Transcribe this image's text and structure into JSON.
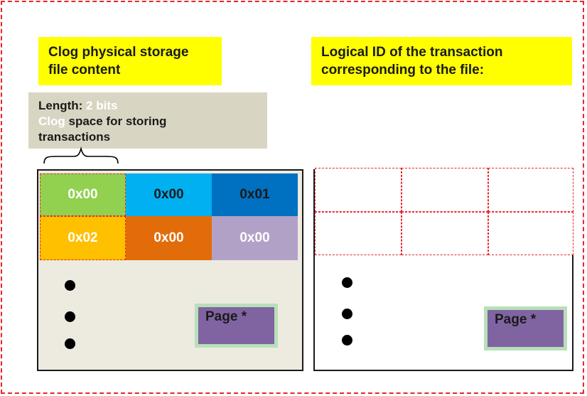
{
  "left": {
    "title_lines": [
      "Clog physical storage",
      "file content"
    ],
    "note": {
      "label": "Length: ",
      "length_value": "2 bits",
      "clog_word": "Clog",
      "line2_rest": " space for storing",
      "line3": "transactions"
    },
    "cells": [
      {
        "value": "0x00",
        "bg": "#92d050",
        "fg": "#ffffff"
      },
      {
        "value": "0x00",
        "bg": "#00b0f0",
        "fg": "#1a1a1a"
      },
      {
        "value": "0x01",
        "bg": "#0070c0",
        "fg": "#1a1a1a"
      },
      {
        "value": "0x02",
        "bg": "#ffc000",
        "fg": "#ffffff"
      },
      {
        "value": "0x00",
        "bg": "#e36c0a",
        "fg": "#ffffff"
      },
      {
        "value": "0x00",
        "bg": "#b2a1c7",
        "fg": "#ffffff"
      }
    ],
    "page_label": "Page *"
  },
  "right": {
    "title_lines": [
      "Logical ID of the transaction",
      "corresponding to the file:"
    ],
    "page_label": "Page *"
  },
  "colors": {
    "dash_red": "#e8262b",
    "yellow": "#ffff00",
    "note_bg": "#d9d5c3",
    "panel_bg": "#edeae0",
    "page_fill": "#8064a2",
    "page_border": "#b8e0b8"
  }
}
